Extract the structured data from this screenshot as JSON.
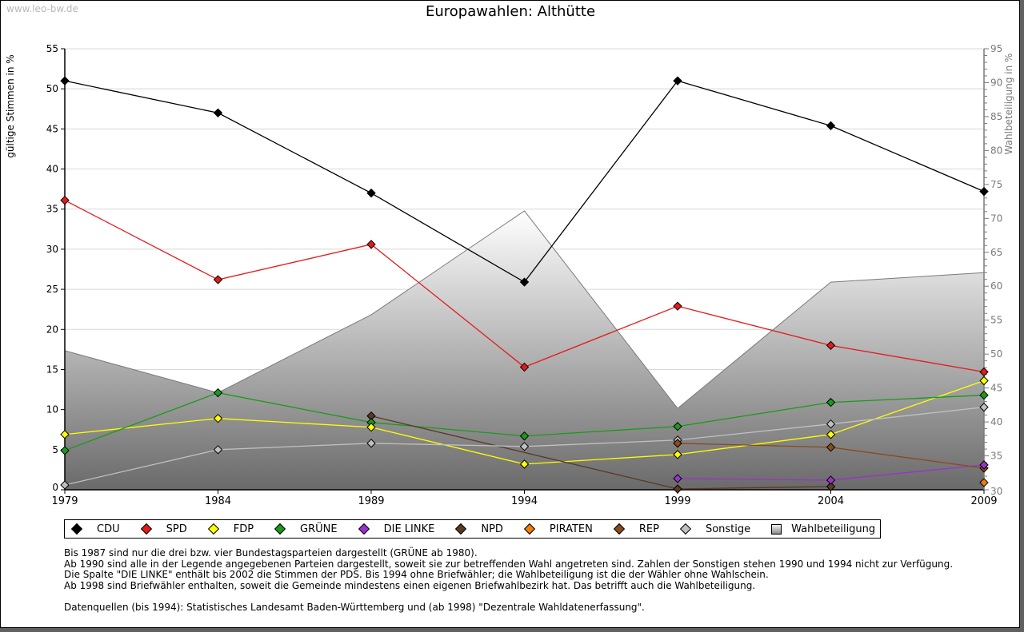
{
  "watermark": "www.leo-bw.de",
  "title": "Europawahlen: Althütte",
  "chart_data": {
    "type": "line",
    "title": "Europawahlen: Althütte",
    "x": [
      "1979",
      "1984",
      "1989",
      "1994",
      "1999",
      "2004",
      "2009"
    ],
    "ylabel": "gültige Stimmen in %",
    "ylabel_right": "Wahlbeteiligung in %",
    "ylim": [
      0,
      55
    ],
    "ylim_right": [
      30,
      95
    ],
    "yticks": [
      0,
      5,
      10,
      15,
      20,
      25,
      30,
      35,
      40,
      45,
      50,
      55
    ],
    "yticks_right": [
      30,
      35,
      40,
      45,
      50,
      55,
      60,
      65,
      70,
      75,
      80,
      85,
      90,
      95
    ],
    "grid": true,
    "legend_position": "bottom",
    "series": [
      {
        "name": "CDU",
        "color": "#000000",
        "values": [
          51.0,
          47.0,
          37.0,
          25.9,
          51.0,
          45.4,
          37.2
        ]
      },
      {
        "name": "SPD",
        "color": "#e31a1c",
        "values": [
          36.1,
          26.2,
          30.6,
          15.3,
          22.9,
          18.0,
          14.7
        ]
      },
      {
        "name": "FDP",
        "color": "#ffff00",
        "values": [
          6.9,
          8.9,
          7.8,
          3.2,
          4.4,
          6.9,
          13.6
        ]
      },
      {
        "name": "GRÜNE",
        "color": "#1a9a1a",
        "values": [
          4.9,
          12.1,
          8.4,
          6.7,
          7.9,
          10.9,
          11.8
        ]
      },
      {
        "name": "DIE LINKE",
        "color": "#9932cc",
        "values": [
          null,
          null,
          null,
          null,
          1.4,
          1.2,
          3.1
        ]
      },
      {
        "name": "NPD",
        "color": "#5a3a24",
        "values": [
          null,
          null,
          9.2,
          null,
          0.1,
          0.4,
          null
        ]
      },
      {
        "name": "PIRATEN",
        "color": "#f07d0a",
        "values": [
          null,
          null,
          null,
          null,
          null,
          null,
          0.9
        ]
      },
      {
        "name": "REP",
        "color": "#8b4a1c",
        "values": [
          null,
          null,
          null,
          null,
          5.8,
          5.3,
          2.7
        ]
      },
      {
        "name": "Sonstige",
        "color": "#c0c0c0",
        "values": [
          0.6,
          5.0,
          5.8,
          5.4,
          6.2,
          8.2,
          10.3
        ]
      }
    ],
    "area_series": {
      "name": "Wahlbeteiligung",
      "axis": "right",
      "values": [
        50.5,
        44.3,
        55.8,
        71.1,
        42.0,
        60.6,
        62.0
      ]
    }
  },
  "legend": [
    {
      "label": "CDU",
      "color": "#000000"
    },
    {
      "label": "SPD",
      "color": "#e31a1c"
    },
    {
      "label": "FDP",
      "color": "#ffff00"
    },
    {
      "label": "GRÜNE",
      "color": "#1a9a1a"
    },
    {
      "label": "DIE LINKE",
      "color": "#9932cc"
    },
    {
      "label": "NPD",
      "color": "#5a3a24"
    },
    {
      "label": "PIRATEN",
      "color": "#f07d0a"
    },
    {
      "label": "REP",
      "color": "#8b4a1c"
    },
    {
      "label": "Sonstige",
      "color": "#c0c0c0"
    },
    {
      "label": "Wahlbeteiligung",
      "color": "#b0b0b0"
    }
  ],
  "notes": [
    "Bis 1987 sind nur die drei bzw. vier Bundestagsparteien dargestellt (GRÜNE ab 1980).",
    "Ab 1990 sind alle in der Legende angegebenen Parteien dargestellt, soweit sie zur betreffenden Wahl angetreten sind. Zahlen der Sonstigen stehen 1990 und 1994 nicht zur Verfügung.",
    "Die Spalte \"DIE LINKE\" enthält bis 2002 die Stimmen der PDS. Bis 1994 ohne Briefwähler; die Wahlbeteiligung ist die der Wähler ohne Wahlschein.",
    "Ab 1998 sind Briefwähler enthalten, soweit die Gemeinde mindestens einen eigenen Briefwahlbezirk hat. Das betrifft auch die Wahlbeteiligung."
  ],
  "source": "Datenquellen (bis 1994): Statistisches Landesamt Baden-Württemberg und (ab 1998) \"Dezentrale Wahldatenerfassung\"."
}
